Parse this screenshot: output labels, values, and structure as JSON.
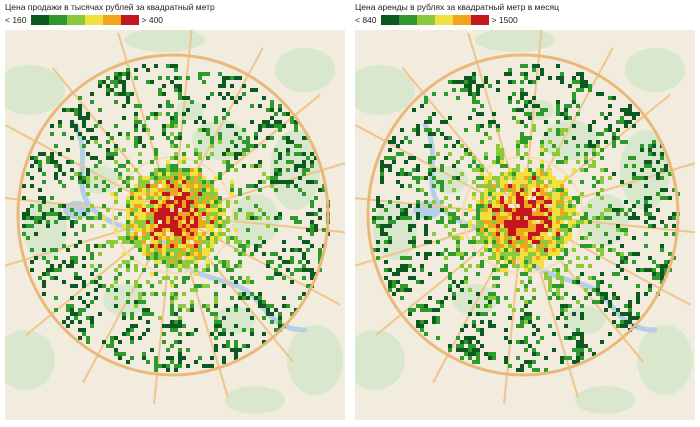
{
  "colors": {
    "background": "#f1ecde",
    "forest": "#d9e8cd",
    "water": "#b5d0e6",
    "road_major": "#eec58c",
    "road_minor": "#f4ddb4",
    "ring": "#eab97a"
  },
  "maps": [
    {
      "id": "sale",
      "title": "Цена продажи в тысячах рублей за квадратный метр",
      "legend": {
        "min_label": "< 160",
        "max_label": "> 400",
        "swatches": [
          "#0c5a22",
          "#2f9a2c",
          "#8cca3c",
          "#f1e040",
          "#f0a51d",
          "#c4161c"
        ]
      }
    },
    {
      "id": "rent",
      "title": "Цена аренды в рублях за квадратный метр в месяц",
      "legend": {
        "min_label": "< 840",
        "max_label": "> 1500",
        "swatches": [
          "#0c5a22",
          "#2f9a2c",
          "#8cca3c",
          "#f1e040",
          "#f0a51d",
          "#c4161c"
        ]
      }
    }
  ]
}
